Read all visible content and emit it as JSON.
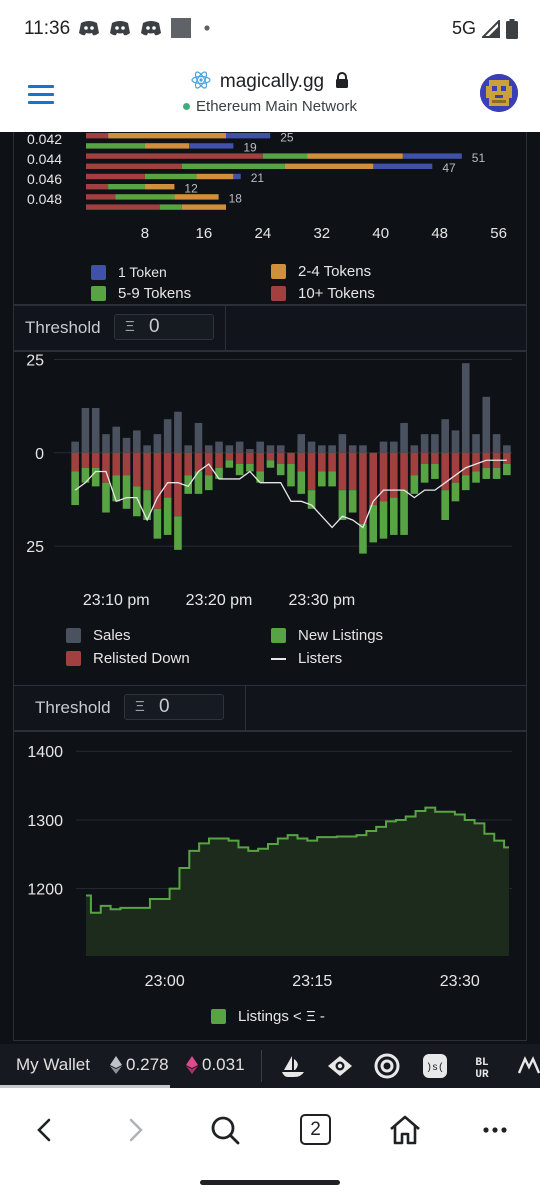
{
  "status_bar": {
    "time": "11:36",
    "network": "5G",
    "notification_icons": [
      "discord-icon",
      "discord-icon",
      "discord-icon",
      "square-icon",
      "dot-icon"
    ]
  },
  "browser": {
    "site": "magically.gg",
    "network": "Ethereum Main Network",
    "tab_count": "2"
  },
  "colors": {
    "one_token": "#3f51a8",
    "two_four": "#d08f3a",
    "five_nine": "#58a444",
    "ten_plus": "#a23f3f",
    "sales": "#4a5260",
    "relisted": "#a23f3f",
    "new_listings": "#58a444",
    "listers": "#e6e6e6",
    "area_line": "#58a444",
    "area_fill": "#1c2b1c"
  },
  "depth_chart": {
    "chart_data": {
      "type": "bar",
      "orientation": "horizontal",
      "stacked": true,
      "y_tick_labels": [
        "0.042",
        "0.044",
        "0.046",
        "0.048"
      ],
      "x_tick_labels": [
        "8",
        "16",
        "24",
        "32",
        "40",
        "48",
        "56"
      ],
      "x_ticks": [
        8,
        16,
        24,
        32,
        40,
        48,
        56
      ],
      "xlim": [
        0,
        57
      ],
      "rows": [
        {
          "segments": [
            3,
            0,
            16,
            6
          ],
          "total": "25",
          "show_total": true
        },
        {
          "segments": [
            0,
            8,
            6,
            6
          ],
          "total": "19",
          "show_total": true
        },
        {
          "segments": [
            24,
            6,
            13,
            8
          ],
          "total": "51",
          "show_total": true
        },
        {
          "segments": [
            13,
            14,
            12,
            8
          ],
          "total": "47",
          "show_total": true
        },
        {
          "segments": [
            8,
            7,
            5,
            1
          ],
          "total": "21",
          "show_total": true
        },
        {
          "segments": [
            3,
            5,
            4,
            0
          ],
          "total": "12",
          "show_total": true
        },
        {
          "segments": [
            4,
            8,
            6,
            0
          ],
          "total": "18",
          "show_total": true
        },
        {
          "segments": [
            10,
            3,
            6,
            0
          ],
          "total": "",
          "show_total": false
        }
      ],
      "segment_order": [
        "10+ Tokens",
        "5-9 Tokens",
        "2-4 Tokens",
        "1 Token"
      ]
    },
    "legend": [
      {
        "label": "1 Token",
        "color_key": "one_token"
      },
      {
        "label": "2-4 Tokens",
        "color_key": "two_four"
      },
      {
        "label": "5-9 Tokens",
        "color_key": "five_nine"
      },
      {
        "label": "10+ Tokens",
        "color_key": "ten_plus"
      }
    ]
  },
  "activity_controls": {
    "threshold_label": "Threshold",
    "threshold_symbol": "Ξ",
    "threshold_value": "0"
  },
  "activity_chart": {
    "chart_data": {
      "type": "bar",
      "stacked": true,
      "y_tick_labels": [
        "25",
        "0",
        "25"
      ],
      "y_ticks": [
        25,
        0,
        -25
      ],
      "ylim": [
        -33,
        27
      ],
      "x_tick_labels": [
        "23:10 pm",
        "23:20 pm",
        "23:30 pm"
      ],
      "x_tick_index": [
        4,
        14,
        24
      ],
      "sales": [
        3,
        12,
        12,
        5,
        7,
        4,
        6,
        2,
        5,
        9,
        11,
        2,
        8,
        2,
        3,
        2,
        3,
        1,
        3,
        2,
        2,
        0,
        5,
        3,
        2,
        2,
        5,
        2,
        2,
        0,
        3,
        3,
        8,
        2,
        5,
        5,
        9,
        6,
        24,
        5,
        15,
        5,
        2
      ],
      "relisted": [
        -5,
        -4,
        -4,
        -8,
        -6,
        -6,
        -9,
        -10,
        -15,
        -12,
        -17,
        -6,
        -5,
        -6,
        -4,
        -2,
        -3,
        -3,
        -5,
        -2,
        -3,
        -3,
        -5,
        -10,
        -5,
        -5,
        -10,
        -10,
        -19,
        -14,
        -13,
        -12,
        -10,
        -6,
        -3,
        -3,
        -10,
        -8,
        -6,
        -5,
        -4,
        -4,
        -3
      ],
      "new_listings": [
        -9,
        -4,
        -5,
        -8,
        -7,
        -9,
        -8,
        -8,
        -8,
        -10,
        -9,
        -5,
        -6,
        -4,
        -3,
        -2,
        -3,
        -2,
        -3,
        -2,
        -3,
        -6,
        -6,
        -5,
        -4,
        -4,
        -8,
        -6,
        -8,
        -10,
        -10,
        -10,
        -12,
        -5,
        -5,
        -4,
        -8,
        -5,
        -4,
        -3,
        -3,
        -3,
        -3
      ],
      "listers": [
        -10,
        -8,
        -5,
        -5,
        -13,
        -12,
        -12,
        -18,
        -12,
        -8,
        -8,
        -9,
        -5,
        -3,
        -7,
        -7,
        -7,
        -5,
        -8,
        -8,
        -8,
        -13,
        -13,
        -14,
        -17,
        -20,
        -17,
        -18,
        -20,
        -13,
        -10,
        -10,
        -10,
        -12,
        -10,
        -10,
        -8,
        -6,
        -4,
        -3,
        -2,
        -2,
        -2
      ]
    },
    "legend": [
      {
        "label": "Sales",
        "color_key": "sales",
        "kind": "box"
      },
      {
        "label": "New Listings",
        "color_key": "new_listings",
        "kind": "box"
      },
      {
        "label": "Relisted Down",
        "color_key": "relisted",
        "kind": "box"
      },
      {
        "label": "Listers",
        "color_key": "listers",
        "kind": "line"
      }
    ]
  },
  "listings_controls": {
    "threshold_label": "Threshold",
    "threshold_symbol": "Ξ",
    "threshold_value": "0"
  },
  "listings_chart": {
    "chart_data": {
      "type": "area",
      "y_tick_labels": [
        "1400",
        "1300",
        "1200"
      ],
      "y_ticks": [
        1400,
        1300,
        1200
      ],
      "ylim": [
        1102,
        1428
      ],
      "x_tick_labels": [
        "23:00",
        "23:15",
        "23:30"
      ],
      "x_tick_index": [
        8,
        23,
        38
      ],
      "values": [
        1190,
        1165,
        1175,
        1170,
        1172,
        1172,
        1172,
        1185,
        1185,
        1200,
        1230,
        1255,
        1266,
        1273,
        1273,
        1270,
        1260,
        1255,
        1258,
        1265,
        1273,
        1278,
        1273,
        1270,
        1275,
        1275,
        1276,
        1276,
        1278,
        1284,
        1290,
        1298,
        1300,
        1305,
        1313,
        1318,
        1312,
        1312,
        1308,
        1300,
        1295,
        1280,
        1270,
        1260
      ]
    },
    "legend_label": "Listings < Ξ -"
  },
  "wallet": {
    "label": "My Wallet",
    "eth_balance": "0.278",
    "weth_balance": "0.031",
    "marketplaces": [
      "opensea-icon",
      "looksrare-icon",
      "x2y2-icon",
      "sudoswap-icon",
      "blur-icon",
      "magic-eden-icon"
    ]
  }
}
